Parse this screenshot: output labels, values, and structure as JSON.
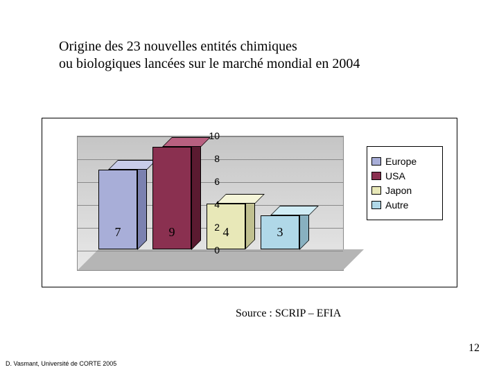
{
  "title": {
    "line1": "Origine des 23 nouvelles entités chimiques",
    "line2": "ou biologiques lancées sur le marché mondial en 2004"
  },
  "chart": {
    "type": "bar",
    "ylim": [
      0,
      10
    ],
    "ytick_step": 2,
    "yticks": [
      "0",
      "2",
      "4",
      "6",
      "8",
      "10"
    ],
    "background_gradient": [
      "#c5c5c5",
      "#e8e8e8"
    ],
    "gridline_color": "#888888",
    "floor_color": "#b5b5b5",
    "bars": [
      {
        "label": "7",
        "value": 7,
        "front": "#a8aed8",
        "top": "#c8ccea",
        "side": "#7b81b0"
      },
      {
        "label": "9",
        "value": 9,
        "front": "#8a3050",
        "top": "#b86080",
        "side": "#5a1a30"
      },
      {
        "label": "4",
        "value": 4,
        "front": "#e8e8b8",
        "top": "#f5f5d8",
        "side": "#c0c090"
      },
      {
        "label": "3",
        "value": 3,
        "front": "#b0d8e8",
        "top": "#d0ecf5",
        "side": "#88b0c0"
      }
    ],
    "bar_label_fontsize": 18
  },
  "legend": {
    "items": [
      {
        "label": "Europe",
        "color": "#a8aed8"
      },
      {
        "label": "USA",
        "color": "#8a3050"
      },
      {
        "label": "Japon",
        "color": "#e8e8b8"
      },
      {
        "label": "Autre",
        "color": "#b0d8e8"
      }
    ]
  },
  "source": "Source : SCRIP – EFIA",
  "page_number": "12",
  "footer": "D. Vasmant,  Université de CORTE 2005"
}
